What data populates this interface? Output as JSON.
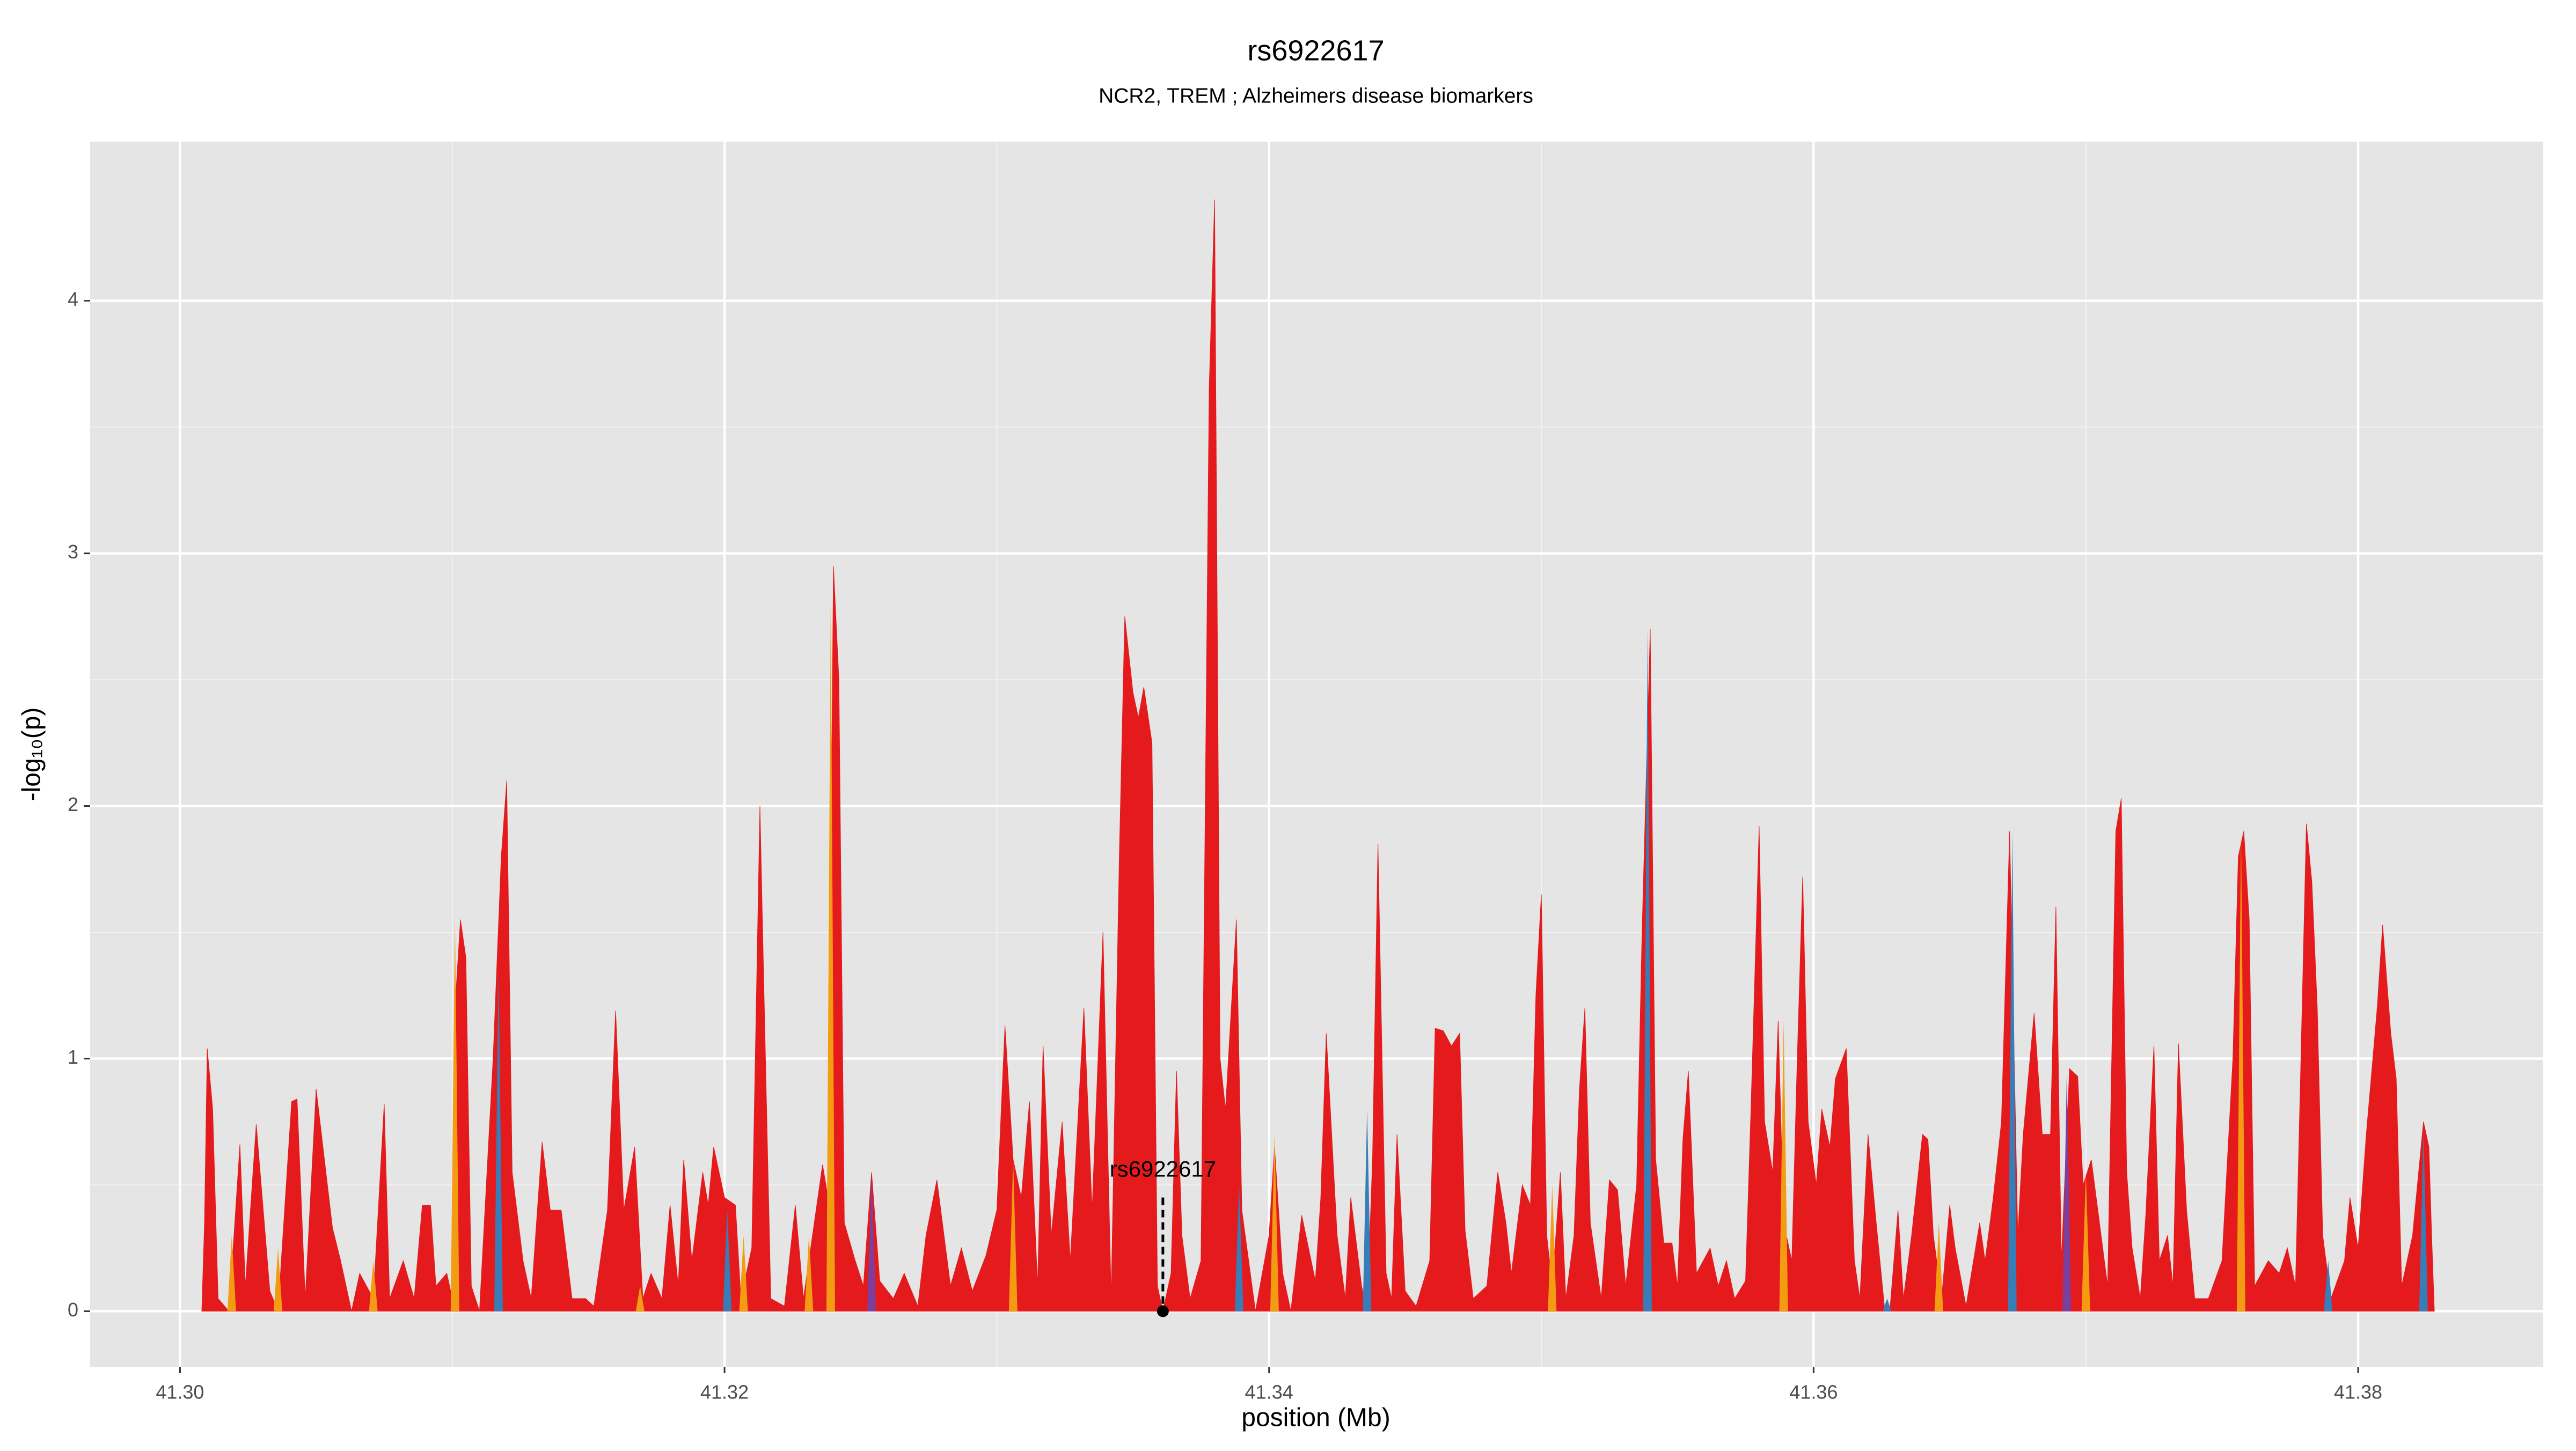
{
  "chart_data": {
    "type": "area",
    "title": "rs6922617",
    "subtitle": "NCR2, TREM ; Alzheimers disease biomarkers",
    "x_label": "position (Mb)",
    "y_label": "-log₁₀(p)",
    "xlim": [
      41.2967,
      41.3868
    ],
    "ylim": [
      -0.22,
      4.63
    ],
    "xticks": [
      {
        "value": 41.3,
        "label": "41.30"
      },
      41.32,
      41.34,
      41.36,
      41.38
    ],
    "yticks": [
      0,
      1,
      2,
      3,
      4
    ],
    "xminorticks": [
      41.31,
      41.33,
      41.35,
      41.37
    ],
    "yminorticks": [
      0.5,
      1.5,
      2.5,
      3.5
    ],
    "grid": true,
    "background": "#e5e5e5",
    "annotation": {
      "label": "rs6922617",
      "x": 41.3361,
      "y": 0.45
    },
    "series": [
      {
        "type": "area",
        "color": "#e41a1c",
        "x": [
          41.3008,
          41.3009,
          41.301,
          41.3012,
          41.3014,
          41.3018,
          41.3022,
          41.3024,
          41.3028,
          41.3033,
          41.3036,
          41.3041,
          41.3043,
          41.3046,
          41.305,
          41.3056,
          41.3059,
          41.3063,
          41.3066,
          41.3071,
          41.3075,
          41.3077,
          41.3082,
          41.3086,
          41.3089,
          41.3092,
          41.3094,
          41.3098,
          41.31,
          41.3101,
          41.3103,
          41.3105,
          41.3107,
          41.311,
          41.3115,
          41.3118,
          41.312,
          41.3122,
          41.3126,
          41.3129,
          41.3133,
          41.3136,
          41.314,
          41.3144,
          41.3149,
          41.3152,
          41.3157,
          41.316,
          41.3163,
          41.3167,
          41.317,
          41.3173,
          41.3177,
          41.318,
          41.3183,
          41.3185,
          41.3188,
          41.3192,
          41.3194,
          41.3196,
          41.32,
          41.3204,
          41.3206,
          41.321,
          41.3213,
          41.3214,
          41.3217,
          41.3222,
          41.3226,
          41.3229,
          41.3236,
          41.3238,
          41.324,
          41.3242,
          41.3244,
          41.3248,
          41.3251,
          41.3254,
          41.3257,
          41.3262,
          41.3266,
          41.3271,
          41.3274,
          41.3278,
          41.3283,
          41.3287,
          41.3291,
          41.3296,
          41.33,
          41.3303,
          41.3306,
          41.3309,
          41.3312,
          41.3315,
          41.3317,
          41.332,
          41.3324,
          41.3327,
          41.3332,
          41.3335,
          41.3339,
          41.3342,
          41.3345,
          41.3347,
          41.335,
          41.3352,
          41.3354,
          41.3357,
          41.3359,
          41.3361,
          41.3364,
          41.3366,
          41.3368,
          41.3371,
          41.3375,
          41.3378,
          41.338,
          41.3382,
          41.3384,
          41.3388,
          41.339,
          41.3395,
          41.34,
          41.3402,
          41.3405,
          41.3408,
          41.3412,
          41.3417,
          41.3419,
          41.3421,
          41.3425,
          41.3428,
          41.343,
          41.3434,
          41.3436,
          41.3438,
          41.344,
          41.3443,
          41.3445,
          41.3447,
          41.345,
          41.3454,
          41.3459,
          41.3461,
          41.3464,
          41.3467,
          41.347,
          41.3472,
          41.3475,
          41.348,
          41.3484,
          41.3487,
          41.3489,
          41.3493,
          41.3496,
          41.3498,
          41.35,
          41.3502,
          41.3504,
          41.3507,
          41.3509,
          41.3512,
          41.3514,
          41.3516,
          41.3518,
          41.3522,
          41.3525,
          41.3528,
          41.3531,
          41.3535,
          41.3537,
          41.354,
          41.3542,
          41.3545,
          41.3548,
          41.355,
          41.3552,
          41.3554,
          41.3557,
          41.3562,
          41.3565,
          41.3568,
          41.3571,
          41.3575,
          41.3577,
          41.358,
          41.3582,
          41.3585,
          41.3587,
          41.3589,
          41.3592,
          41.3594,
          41.3596,
          41.3598,
          41.3601,
          41.3603,
          41.3606,
          41.3608,
          41.3612,
          41.3615,
          41.3617,
          41.362,
          41.3623,
          41.3626,
          41.3628,
          41.3631,
          41.3633,
          41.3636,
          41.364,
          41.3642,
          41.3644,
          41.3647,
          41.365,
          41.3652,
          41.3656,
          41.3661,
          41.3663,
          41.3666,
          41.3669,
          41.3672,
          41.3675,
          41.3677,
          41.3681,
          41.3684,
          41.3687,
          41.3689,
          41.3691,
          41.3694,
          41.3697,
          41.3699,
          41.3702,
          41.3705,
          41.3708,
          41.3711,
          41.3713,
          41.3715,
          41.3717,
          41.372,
          41.3722,
          41.3725,
          41.3727,
          41.373,
          41.3732,
          41.3734,
          41.3737,
          41.374,
          41.3745,
          41.375,
          41.3754,
          41.3756,
          41.3758,
          41.376,
          41.3762,
          41.3767,
          41.3771,
          41.3774,
          41.3777,
          41.3779,
          41.3781,
          41.3783,
          41.3785,
          41.3787,
          41.379,
          41.3795,
          41.3797,
          41.38,
          41.3803,
          41.3807,
          41.3809,
          41.3812,
          41.3814,
          41.3816,
          41.382,
          41.3824,
          41.3826,
          41.3827,
          41.3828
        ],
        "values": [
          0,
          0.35,
          1.04,
          0.8,
          0.05,
          0,
          0.66,
          0.1,
          0.74,
          0.08,
          0,
          0.83,
          0.84,
          0.05,
          0.88,
          0.33,
          0.2,
          0,
          0.15,
          0.05,
          0.82,
          0.05,
          0.2,
          0.05,
          0.42,
          0.42,
          0.1,
          0.15,
          0.05,
          1.2,
          1.55,
          1.4,
          0.1,
          0,
          1.0,
          1.8,
          2.1,
          0.55,
          0.2,
          0.05,
          0.67,
          0.4,
          0.4,
          0.05,
          0.05,
          0.02,
          0.4,
          1.19,
          0.4,
          0.65,
          0.05,
          0.15,
          0.05,
          0.42,
          0.1,
          0.6,
          0.2,
          0.55,
          0.42,
          0.65,
          0.45,
          0.42,
          0.05,
          0.25,
          2.0,
          1.5,
          0.05,
          0.02,
          0.42,
          0.05,
          0.58,
          0.45,
          2.95,
          2.5,
          0.35,
          0.2,
          0.1,
          0.55,
          0.12,
          0.05,
          0.15,
          0.02,
          0.3,
          0.52,
          0.1,
          0.25,
          0.08,
          0.22,
          0.4,
          1.13,
          0.6,
          0.45,
          0.83,
          0.1,
          1.05,
          0.3,
          0.75,
          0.2,
          1.2,
          0.4,
          1.5,
          0.05,
          1.8,
          2.75,
          2.45,
          2.35,
          2.47,
          2.25,
          0.1,
          0,
          0.15,
          0.95,
          0.3,
          0.05,
          0.2,
          3.65,
          4.4,
          1.0,
          0.8,
          1.55,
          0.4,
          0,
          0.3,
          0.65,
          0.15,
          0,
          0.38,
          0.12,
          0.45,
          1.1,
          0.3,
          0.05,
          0.45,
          0.1,
          0,
          0.6,
          1.85,
          0.15,
          0.05,
          0.7,
          0.08,
          0.02,
          0.2,
          1.12,
          1.11,
          1.05,
          1.1,
          0.32,
          0.05,
          0.1,
          0.55,
          0.35,
          0.15,
          0.5,
          0.42,
          1.25,
          1.65,
          0.3,
          0.1,
          0.55,
          0.05,
          0.3,
          0.88,
          1.2,
          0.35,
          0.05,
          0.52,
          0.48,
          0.1,
          0.5,
          1.5,
          2.7,
          0.6,
          0.27,
          0.27,
          0.1,
          0.68,
          0.95,
          0.15,
          0.25,
          0.1,
          0.2,
          0.05,
          0.12,
          0.8,
          1.92,
          0.75,
          0.55,
          1.15,
          0.35,
          0.2,
          1.0,
          1.72,
          0.75,
          0.5,
          0.8,
          0.65,
          0.92,
          1.04,
          0.2,
          0.05,
          0.7,
          0.35,
          0.02,
          0,
          0.4,
          0.05,
          0.3,
          0.7,
          0.68,
          0.3,
          0.05,
          0.42,
          0.25,
          0.02,
          0.35,
          0.2,
          0.45,
          0.75,
          1.9,
          0.3,
          0.7,
          1.18,
          0.7,
          0.7,
          1.6,
          0.2,
          0.96,
          0.93,
          0.5,
          0.6,
          0.35,
          0.1,
          1.9,
          2.03,
          0.55,
          0.25,
          0.05,
          0.38,
          1.05,
          0.2,
          0.3,
          0.1,
          1.06,
          0.4,
          0.05,
          0.05,
          0.2,
          1.0,
          1.8,
          1.9,
          1.55,
          0.1,
          0.2,
          0.15,
          0.25,
          0.1,
          1.0,
          1.93,
          1.7,
          1.2,
          0.3,
          0.05,
          0.2,
          0.45,
          0.25,
          0.7,
          1.2,
          1.53,
          1.1,
          0.92,
          0.1,
          0.3,
          0.75,
          0.65,
          0.3,
          0
        ]
      },
      {
        "type": "spike",
        "color": "#f39c12",
        "x": [
          41.3019,
          41.3036,
          41.3071,
          41.3101,
          41.3169,
          41.3207,
          41.3231,
          41.3239,
          41.3306,
          41.3402,
          41.3504,
          41.3589,
          41.3646,
          41.37,
          41.3757
        ],
        "values": [
          0.3,
          0.25,
          0.2,
          1.55,
          0.1,
          0.3,
          0.3,
          2.8,
          0.6,
          0.7,
          0.5,
          1.15,
          0.35,
          0.55,
          1.9
        ]
      },
      {
        "type": "spike",
        "color": "#377eb8",
        "x": [
          41.3117,
          41.3201,
          41.3389,
          41.3436,
          41.3539,
          41.3627,
          41.3673,
          41.3789,
          41.3824
        ],
        "values": [
          1.35,
          0.4,
          0.5,
          0.8,
          2.7,
          0.05,
          1.9,
          0.2,
          0.72
        ]
      },
      {
        "type": "spike",
        "color": "#7b3f9e",
        "x": [
          41.3254,
          41.3693
        ],
        "values": [
          0.55,
          0.95
        ]
      }
    ]
  }
}
